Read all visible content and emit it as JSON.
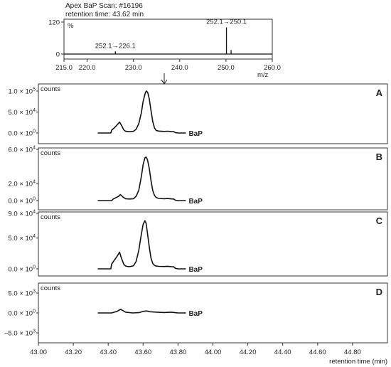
{
  "chart_data": [
    {
      "type": "bar",
      "title": "Apex BaP Scan: #16196",
      "subtitle": "retention time: 43.62 min",
      "xlabel": "m/z",
      "ylabel": "%",
      "xlim": [
        215.0,
        260.0
      ],
      "ylim": [
        0,
        120
      ],
      "xticks": [
        "215.0",
        "220.0",
        "230.0",
        "240.0",
        "250.0",
        "260.0"
      ],
      "yticks": [
        "120",
        "0"
      ],
      "x": [
        226.1,
        250.1,
        251.1
      ],
      "values": [
        10,
        100,
        15
      ],
      "annotations": [
        {
          "text": "252.1→226.1",
          "x": 226.1
        },
        {
          "text": "252.1→250.1",
          "x": 250.1
        }
      ]
    },
    {
      "type": "line",
      "panel": "A",
      "ylabel": "counts",
      "series_label": "BaP",
      "xlim": [
        43.0,
        45.0
      ],
      "yticks": [
        {
          "m": "1.0",
          "e": "5",
          "v": 100000
        },
        {
          "m": "5.0",
          "e": "4",
          "v": 50000
        },
        {
          "m": "0.0",
          "e": "0",
          "v": 0
        }
      ],
      "ylim": [
        -5000,
        110000
      ],
      "x": [
        43.34,
        43.415,
        43.42,
        43.435,
        43.45,
        43.465,
        43.475,
        43.49,
        43.5,
        43.52,
        43.545,
        43.56,
        43.575,
        43.59,
        43.6,
        43.61,
        43.615,
        43.62,
        43.627,
        43.635,
        43.645,
        43.655,
        43.665,
        43.675,
        43.69,
        43.72,
        43.74,
        43.76,
        43.775,
        43.785,
        43.8,
        43.845
      ],
      "y": [
        0,
        0,
        7000,
        12000,
        19000,
        26000,
        19000,
        7000,
        4000,
        3000,
        4000,
        9000,
        22000,
        48000,
        75000,
        92000,
        98000,
        100000,
        96000,
        82000,
        55000,
        28000,
        12000,
        6000,
        4500,
        3800,
        4200,
        3600,
        3300,
        800,
        0,
        0
      ]
    },
    {
      "type": "line",
      "panel": "B",
      "ylabel": "counts",
      "series_label": "BaP",
      "xlim": [
        43.0,
        45.0
      ],
      "yticks": [
        {
          "m": "6.0",
          "e": "4",
          "v": 60000
        },
        {
          "m": "2.0",
          "e": "4",
          "v": 20000
        },
        {
          "m": "0.0",
          "e": "0",
          "v": 0
        }
      ],
      "ylim": [
        -3000,
        60000
      ],
      "x": [
        43.34,
        43.42,
        43.43,
        43.445,
        43.46,
        43.47,
        43.485,
        43.5,
        43.52,
        43.545,
        43.56,
        43.575,
        43.59,
        43.6,
        43.61,
        43.617,
        43.625,
        43.635,
        43.645,
        43.655,
        43.665,
        43.675,
        43.69,
        43.72,
        43.74,
        43.76,
        43.775,
        43.785,
        43.8,
        43.845
      ],
      "y": [
        0,
        0,
        2000,
        3500,
        5000,
        7000,
        4000,
        2200,
        1800,
        2200,
        5000,
        12000,
        28000,
        42000,
        50000,
        51000,
        48000,
        38000,
        24000,
        12000,
        6000,
        3500,
        2500,
        2200,
        2400,
        2000,
        1800,
        400,
        0,
        0
      ]
    },
    {
      "type": "line",
      "panel": "C",
      "ylabel": "counts",
      "series_label": "BaP",
      "xlim": [
        43.0,
        45.0
      ],
      "yticks": [
        {
          "m": "9.0",
          "e": "4",
          "v": 90000
        },
        {
          "m": "5.0",
          "e": "4",
          "v": 50000
        },
        {
          "m": "0.0",
          "e": "0",
          "v": 0
        }
      ],
      "ylim": [
        -4000,
        92000
      ],
      "x": [
        43.34,
        43.415,
        43.42,
        43.435,
        43.45,
        43.465,
        43.475,
        43.49,
        43.5,
        43.52,
        43.545,
        43.56,
        43.575,
        43.59,
        43.6,
        43.61,
        43.617,
        43.625,
        43.635,
        43.645,
        43.655,
        43.665,
        43.675,
        43.69,
        43.72,
        43.74,
        43.76,
        43.775,
        43.785,
        43.8,
        43.845
      ],
      "y": [
        0,
        0,
        8000,
        14000,
        20000,
        27000,
        18000,
        7000,
        4500,
        3500,
        5000,
        12000,
        30000,
        56000,
        72000,
        78000,
        74000,
        58000,
        36000,
        18000,
        9000,
        5500,
        4500,
        4000,
        3800,
        4200,
        3600,
        3300,
        800,
        0,
        0
      ]
    },
    {
      "type": "line",
      "panel": "D",
      "ylabel": "counts",
      "series_label": "BaP",
      "xlim": [
        43.0,
        45.0
      ],
      "yticks": [
        {
          "m": "5.0",
          "e": "3",
          "v": 5000
        },
        {
          "m": "0.0",
          "e": "0",
          "v": 0
        },
        {
          "m": "−5.0",
          "e": "3",
          "v": -5000
        }
      ],
      "ylim": [
        -7000,
        7000
      ],
      "x": [
        43.34,
        43.42,
        43.45,
        43.47,
        43.48,
        43.5,
        43.54,
        43.58,
        43.6,
        43.62,
        43.64,
        43.68,
        43.72,
        43.76,
        43.78,
        43.8,
        43.845
      ],
      "y": [
        0,
        0,
        400,
        900,
        700,
        200,
        0,
        100,
        400,
        500,
        300,
        200,
        100,
        200,
        100,
        0,
        0
      ]
    }
  ],
  "shared_x_axis": {
    "xlabel": "retention time (min)",
    "xticks": [
      "43.00",
      "43.20",
      "43.40",
      "43.60",
      "43.80",
      "44.00",
      "44.20",
      "44.40",
      "44.60",
      "44.80"
    ]
  }
}
